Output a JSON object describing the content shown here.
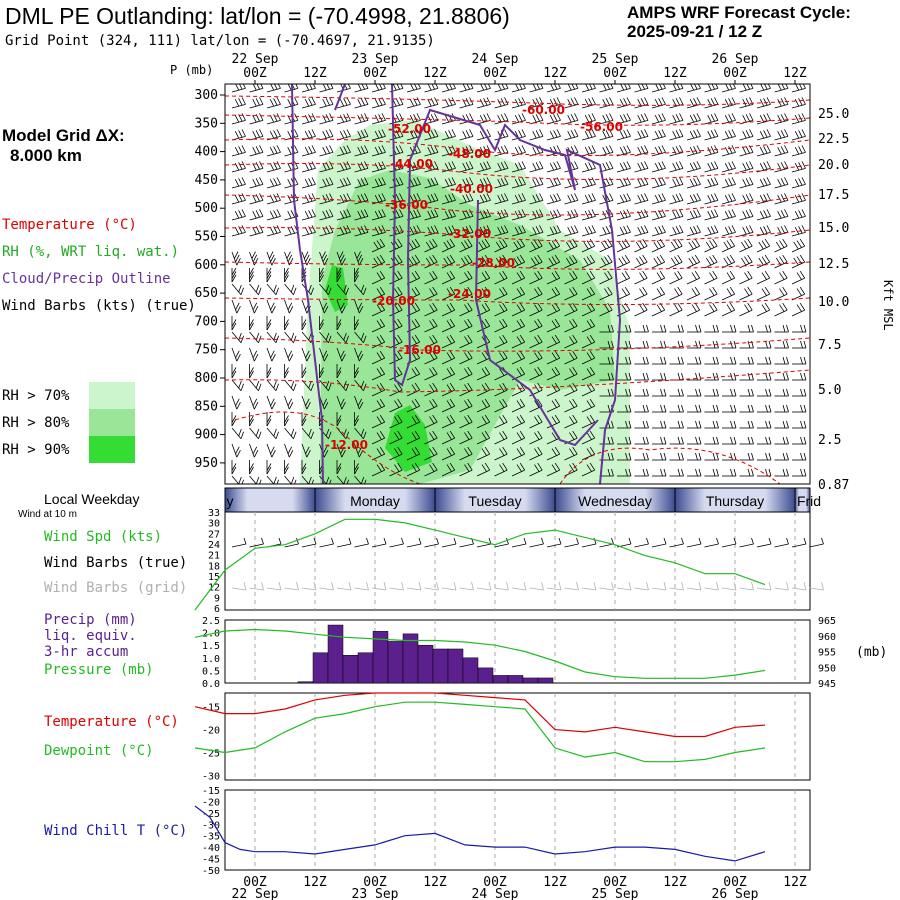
{
  "header": {
    "title": "DML PE Outlanding:  lat/lon = (-70.4998, 21.8806)",
    "gridpoint": "Grid Point (324, 111) lat/lon = (-70.4697, 21.9135)",
    "cycle_line1": "AMPS WRF Forecast Cycle:",
    "cycle_line2": "2025-09-21 / 12  Z",
    "model_grid_line1": "Model Grid ΔX:",
    "model_grid_line2": "8.000 km"
  },
  "legend": {
    "temperature": "Temperature (°C)",
    "rh": "RH (%, WRT liq. wat.)",
    "cloud": "Cloud/Precip Outline",
    "wind": "Wind Barbs (kts) (true)",
    "rh70": "RH > 70%",
    "rh80": "RH > 80%",
    "rh90": "RH > 90%",
    "local_weekday": "Local Weekday",
    "wind_at": "Wind at 10 m",
    "wind_spd": "Wind Spd (kts)",
    "wind_barbs_true": "Wind Barbs (true)",
    "wind_barbs_grid": "Wind Barbs (grid)",
    "precip1": "Precip (mm)",
    "precip2": "liq. equiv.",
    "precip3": "3-hr accum",
    "pressure": "Pressure (mb)",
    "temp2": "Temperature (°C)",
    "dewpoint": "Dewpoint (°C)",
    "windchill": "Wind Chill T (°C)",
    "p_units": "P (mb)",
    "kft": "Kft MSL",
    "mb_units": "(mb)"
  },
  "colors": {
    "temperature": "#dd0000",
    "rh70": "#ccf5cc",
    "rh80": "#99e699",
    "rh90": "#33dd33",
    "cloud": "#663399",
    "wind_spd": "#22bb22",
    "precip": "#5b1f8e",
    "windchill": "#1a1aaa",
    "weekday_band": "#4a5a9c"
  },
  "time_axis": {
    "ticks": [
      "00Z",
      "12Z",
      "00Z",
      "12Z",
      "00Z",
      "12Z",
      "00Z",
      "12Z",
      "00Z",
      "12Z"
    ],
    "dates_top": [
      "22 Sep",
      "23 Sep",
      "24 Sep",
      "25 Sep",
      "26 Sep"
    ],
    "dates_bottom": [
      "22 Sep",
      "23 Sep",
      "24 Sep",
      "25 Sep",
      "26 Sep"
    ]
  },
  "weekdays": [
    "y",
    "Monday",
    "Tuesday",
    "Wednesday",
    "Thursday",
    "Frid"
  ],
  "chart_data": [
    {
      "type": "heatmap",
      "panel": "cross-section",
      "y_axis_pressure_ticks": [
        "300",
        "350",
        "400",
        "450",
        "500",
        "550",
        "600",
        "650",
        "700",
        "750",
        "800",
        "850",
        "900",
        "950"
      ],
      "y_axis_height_ticks": [
        "25.0",
        "22.5",
        "20.0",
        "17.5",
        "15.0",
        "12.5",
        "10.0",
        "7.5",
        "5.0",
        "2.5",
        "0.87"
      ],
      "temperature_labels": [
        "-60.00",
        "-56.00",
        "-52.00",
        "-48.00",
        "-44.00",
        "-40.00",
        "-36.00",
        "-32.00",
        "-28.00",
        "-24.00",
        "-20.00",
        "-16.00",
        "-12.00"
      ]
    },
    {
      "type": "line",
      "panel": "wind-speed",
      "yticks": [
        "33",
        "30",
        "27",
        "24",
        "21",
        "18",
        "15",
        "12",
        "9",
        "6"
      ],
      "ylim": [
        6,
        33
      ],
      "hours": [
        0,
        6,
        12,
        18,
        24,
        30,
        36,
        42,
        48,
        54,
        60,
        66,
        72,
        78,
        84,
        90,
        96,
        102,
        108,
        114
      ],
      "values": [
        6,
        17,
        23,
        24,
        27,
        31,
        31,
        30,
        28,
        26,
        24,
        27,
        28,
        26,
        24,
        21,
        19,
        16,
        16,
        13
      ]
    },
    {
      "type": "bar",
      "panel": "precip-pressure",
      "yticks_precip": [
        "2.5",
        "2.0",
        "1.5",
        "1.0",
        "0.5",
        "0.0"
      ],
      "yticks_pressure": [
        "965",
        "960",
        "955",
        "950",
        "945"
      ],
      "precip_hours": [
        21,
        24,
        27,
        30,
        33,
        36,
        39,
        42,
        45,
        48,
        51,
        54,
        57,
        60,
        63,
        66,
        69
      ],
      "precip_values": [
        0.05,
        1.2,
        2.3,
        1.1,
        1.2,
        2.05,
        1.65,
        1.95,
        1.5,
        1.35,
        1.35,
        1.0,
        0.6,
        0.3,
        0.3,
        0.2,
        0.2
      ],
      "pressure_hours": [
        0,
        6,
        12,
        18,
        24,
        30,
        36,
        42,
        48,
        54,
        60,
        66,
        72,
        78,
        84,
        90,
        96,
        102,
        108,
        114
      ],
      "pressure_values": [
        959.5,
        961.5,
        962,
        961.5,
        960.5,
        959.5,
        959,
        958.5,
        958.5,
        958,
        957,
        955,
        952,
        948.5,
        947,
        946.5,
        946.5,
        946.5,
        947.5,
        949
      ]
    },
    {
      "type": "line",
      "panel": "temp-dewpoint",
      "yticks": [
        "-15",
        "-20",
        "-25",
        "-30"
      ],
      "hours": [
        0,
        6,
        12,
        18,
        24,
        30,
        36,
        42,
        48,
        54,
        60,
        66,
        72,
        78,
        84,
        90,
        96,
        102,
        108,
        114
      ],
      "series": [
        {
          "name": "Temperature",
          "values": [
            -15,
            -16.5,
            -16.5,
            -15.5,
            -13.5,
            -12.5,
            -12,
            -12,
            -12,
            -12.5,
            -13,
            -13.5,
            -20,
            -20.5,
            -19.5,
            -20.5,
            -21.5,
            -21.5,
            -19.5,
            -19
          ]
        },
        {
          "name": "Dewpoint",
          "values": [
            -24,
            -25,
            -24,
            -20.5,
            -17.5,
            -16.5,
            -15,
            -14,
            -14,
            -14.5,
            -15,
            -15.5,
            -24,
            -26,
            -25,
            -27,
            -27,
            -26.5,
            -25,
            -24
          ]
        }
      ]
    },
    {
      "type": "line",
      "panel": "wind-chill",
      "yticks": [
        "-15",
        "-20",
        "-25",
        "-30",
        "-35",
        "-40",
        "-45",
        "-50"
      ],
      "hours": [
        0,
        3,
        6,
        9,
        12,
        18,
        24,
        30,
        36,
        42,
        48,
        54,
        60,
        66,
        72,
        78,
        84,
        90,
        96,
        102,
        108,
        114
      ],
      "values": [
        -22,
        -27,
        -38,
        -41,
        -42,
        -42,
        -43,
        -41,
        -39,
        -35,
        -34,
        -39,
        -40,
        -40,
        -43,
        -42,
        -40,
        -40,
        -41,
        -44,
        -46,
        -42
      ]
    }
  ]
}
